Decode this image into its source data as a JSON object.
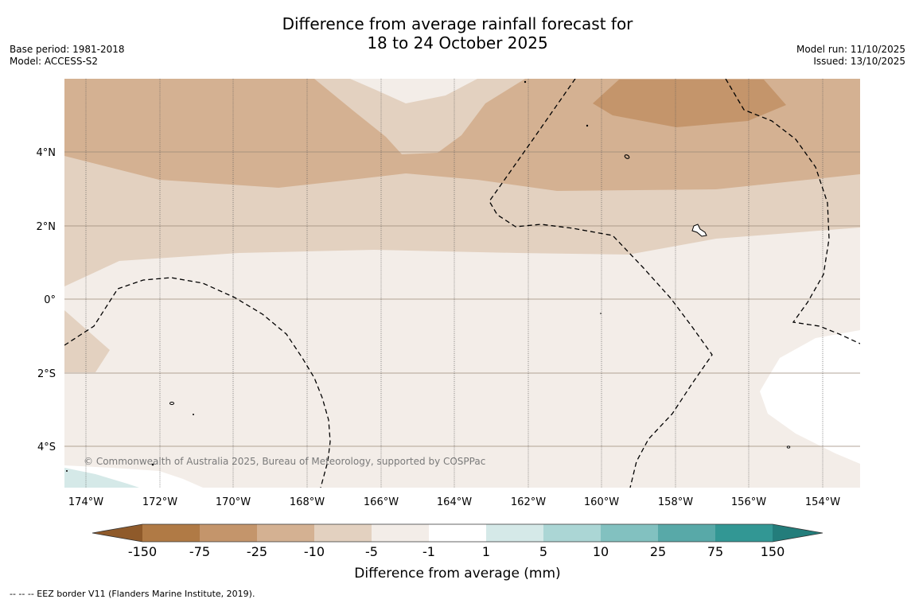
{
  "title": {
    "line1": "Difference from average rainfall forecast for",
    "line2": "18 to 24 October 2025"
  },
  "meta_left": {
    "base_period": "Base period: 1981-2018",
    "model": "Model: ACCESS-S2"
  },
  "meta_right": {
    "model_run": "Model run: 11/10/2025",
    "issued": "Issued: 13/10/2025"
  },
  "map": {
    "lat_labels": [
      "4°N",
      "2°N",
      "0°",
      "2°S",
      "4°S"
    ],
    "lon_labels": [
      "174°W",
      "172°W",
      "170°W",
      "168°W",
      "166°W",
      "164°W",
      "162°W",
      "160°W",
      "158°W",
      "156°W",
      "154°W"
    ],
    "copyright": "© Commonwealth of Australia 2025, Bureau of Meteorology, supported by COSPPac"
  },
  "colorbar": {
    "title": "Difference from average (mm)",
    "ticks": [
      "-150",
      "-75",
      "-25",
      "-10",
      "-5",
      "-1",
      "1",
      "5",
      "10",
      "25",
      "75",
      "150"
    ],
    "colors": {
      "below_min": "#8f5a2a",
      "c1": "#b07a45",
      "c2": "#c4956b",
      "c3": "#d4b192",
      "c4": "#e3d1c0",
      "c5": "#f3ede8",
      "c6": "#ffffff",
      "c7": "#d5e9e8",
      "c8": "#abd6d5",
      "c9": "#82c1c0",
      "c10": "#58a9a8",
      "c11": "#329794",
      "above_max": "#237d7b"
    }
  },
  "footer": {
    "eez_note": "--  --  -- EEZ border V11 (Flanders Marine Institute, 2019)."
  }
}
